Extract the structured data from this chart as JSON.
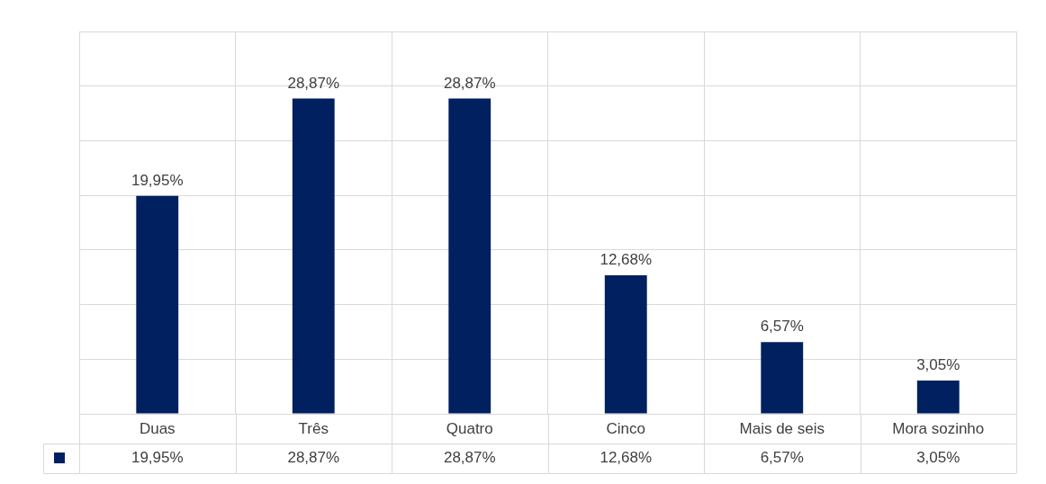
{
  "chart_data": {
    "type": "bar",
    "categories": [
      "Duas",
      "Três",
      "Quatro",
      "Cinco",
      "Mais de seis",
      "Mora sozinho"
    ],
    "series": [
      {
        "color": "#002060",
        "values": [
          19.95,
          28.87,
          28.87,
          12.68,
          6.57,
          3.05
        ],
        "value_labels": [
          "19,95%",
          "28,87%",
          "28,87%",
          "12,68%",
          "6,57%",
          "3,05%"
        ]
      }
    ],
    "ylim": [
      0,
      35
    ],
    "grid": true,
    "legend": false,
    "tick_labels": "x"
  }
}
